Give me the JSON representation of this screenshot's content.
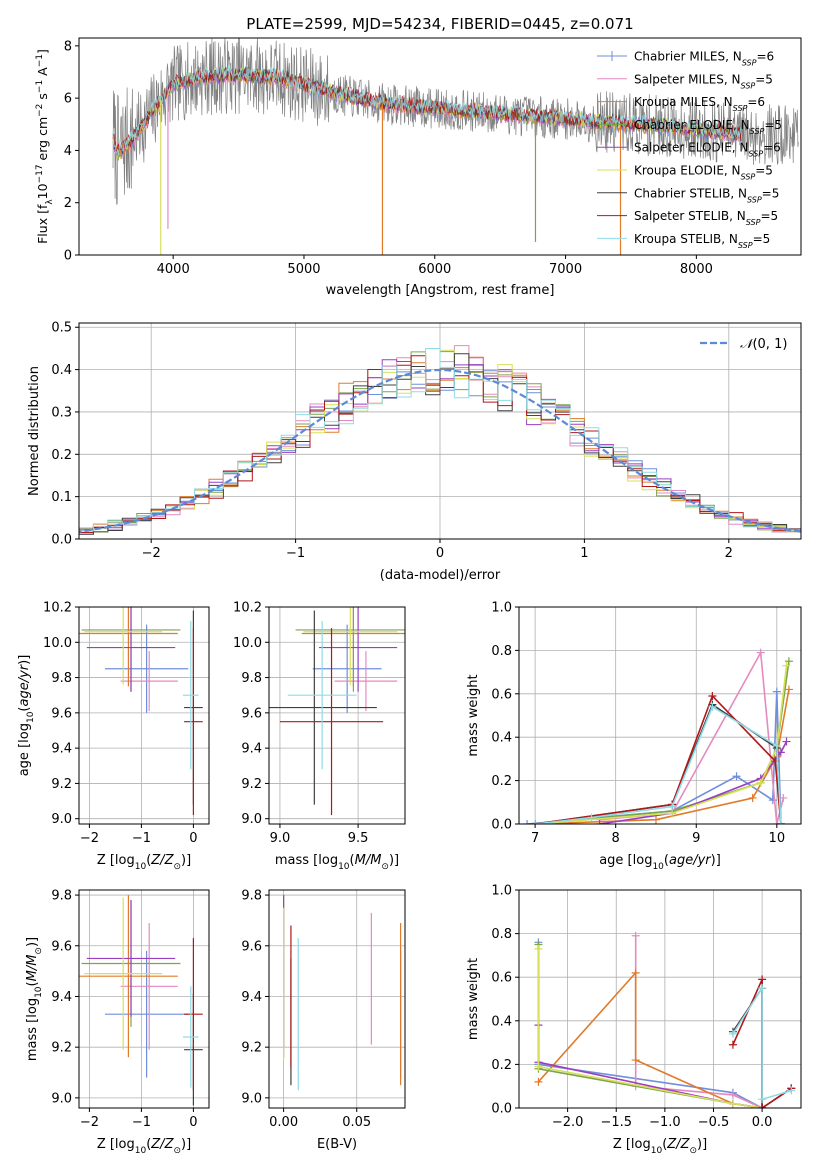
{
  "figure_title": "PLATE=2599, MJD=54234, FIBERID=0445, z=0.071",
  "colors": {
    "chabrier_miles": "#6f8fdc",
    "salpeter_miles": "#e58ac0",
    "kroupa_miles": "#e07b2a",
    "chabrier_elodie": "#7aa64a",
    "salpeter_elodie": "#9a3fc0",
    "kroupa_elodie": "#d8e05a",
    "chabrier_stelib": "#404040",
    "salpeter_stelib": "#b01818",
    "kroupa_stelib": "#8fdbe8",
    "data": "#808080",
    "normal_curve": "#5b8bd8",
    "grid": "#b0b0b0"
  },
  "chart_data": [
    {
      "id": "spectrum",
      "type": "line",
      "xlabel": "wavelength [Angstrom, rest frame]",
      "ylabel": "Flux [f$_\\lambda$10$^{-17}$ erg cm$^{-2}$ s$^{-1}$ A$^{-1}$]",
      "ylabel_parts": [
        "Flux [f",
        "λ",
        "10",
        "−17",
        " erg cm",
        "−2",
        " s",
        "−1",
        " A",
        "−1",
        "]"
      ],
      "xlim": [
        3280,
        8800
      ],
      "ylim": [
        0,
        8.3
      ],
      "xticks": [
        4000,
        5000,
        6000,
        7000,
        8000
      ],
      "yticks": [
        0,
        2,
        4,
        6,
        8
      ],
      "grid": false,
      "legend_position": "top-right",
      "legend": [
        {
          "model": "Chabrier MILES",
          "nssp": "6",
          "color_key": "chabrier_miles"
        },
        {
          "model": "Salpeter MILES",
          "nssp": "5",
          "color_key": "salpeter_miles"
        },
        {
          "model": "Kroupa MILES",
          "nssp": "6",
          "color_key": "kroupa_miles"
        },
        {
          "model": "Chabrier ELODIE",
          "nssp": "5",
          "color_key": "chabrier_elodie"
        },
        {
          "model": "Salpeter ELODIE",
          "nssp": "6",
          "color_key": "salpeter_elodie"
        },
        {
          "model": "Kroupa ELODIE",
          "nssp": "5",
          "color_key": "kroupa_elodie"
        },
        {
          "model": "Chabrier STELIB",
          "nssp": "5",
          "color_key": "chabrier_stelib"
        },
        {
          "model": "Salpeter STELIB",
          "nssp": "5",
          "color_key": "salpeter_stelib"
        },
        {
          "model": "Kroupa STELIB",
          "nssp": "5",
          "color_key": "kroupa_stelib"
        }
      ],
      "nssp_label": "N",
      "nssp_sub": "SSP",
      "continuum_model": [
        [
          3540,
          4.5
        ],
        [
          3570,
          3.9
        ],
        [
          3620,
          4.1
        ],
        [
          3700,
          4.5
        ],
        [
          3800,
          5.2
        ],
        [
          3900,
          5.9
        ],
        [
          4000,
          6.5
        ],
        [
          4200,
          6.8
        ],
        [
          4500,
          6.9
        ],
        [
          4800,
          6.8
        ],
        [
          5000,
          6.5
        ],
        [
          5300,
          6.1
        ],
        [
          5600,
          5.8
        ],
        [
          6000,
          5.6
        ],
        [
          6500,
          5.4
        ],
        [
          7000,
          5.2
        ],
        [
          7500,
          5.0
        ],
        [
          7800,
          4.9
        ],
        [
          8000,
          4.8
        ],
        [
          8200,
          4.7
        ],
        [
          8350,
          4.6
        ]
      ],
      "model_dips": [
        [
          3905,
          0,
          "kroupa_elodie"
        ],
        [
          3960,
          1.0,
          "salpeter_miles"
        ],
        [
          5600,
          0,
          "kroupa_miles"
        ],
        [
          6770,
          0.5,
          "chabrier_elodie"
        ],
        [
          7420,
          0,
          "kroupa_miles"
        ]
      ]
    },
    {
      "id": "residuals",
      "type": "histogram",
      "xlabel": "(data-model)/error",
      "ylabel": "Normed distribution",
      "xlim": [
        -2.5,
        2.5
      ],
      "ylim": [
        0,
        0.51
      ],
      "xticks": [
        -2,
        -1,
        0,
        1,
        2
      ],
      "yticks": [
        0.0,
        0.1,
        0.2,
        0.3,
        0.4,
        0.5
      ],
      "grid": true,
      "legend_position": "top-right",
      "curve_label": "N(0,1)",
      "curve_label_parts": [
        "𝒩",
        "(0, 1)"
      ],
      "curve": "gaussian mean 0 sigma 1",
      "bin_width": 0.1
    },
    {
      "id": "age_vs_Z",
      "type": "errorbar",
      "xlabel": "Z [log10(Z/Z⊙)]",
      "xlabel_parts": [
        "Z [log",
        "10",
        "(",
        "Z/Z",
        "⊙",
        ")]"
      ],
      "ylabel": "age [log10(age/yr)]",
      "ylabel_parts": [
        "age  [log",
        "10",
        "(",
        "age/yr",
        ")]"
      ],
      "xlim": [
        -2.2,
        0.3
      ],
      "ylim": [
        8.97,
        10.2
      ],
      "xticks": [
        -2,
        -1,
        0
      ],
      "yticks": [
        9.0,
        9.2,
        9.4,
        9.6,
        9.8,
        10.0,
        10.2
      ],
      "grid": true,
      "points": [
        {
          "color_key": "chabrier_miles",
          "x": -0.9,
          "xerr": 0.8,
          "y": 9.85,
          "yerr": 0.25
        },
        {
          "color_key": "salpeter_miles",
          "x": -0.85,
          "xerr": 0.55,
          "y": 9.78,
          "yerr": 0.17
        },
        {
          "color_key": "kroupa_miles",
          "x": -1.25,
          "xerr": 0.95,
          "y": 10.05,
          "yerr": 0.3
        },
        {
          "color_key": "chabrier_elodie",
          "x": -1.2,
          "xerr": 0.95,
          "y": 10.07,
          "yerr": 0.35
        },
        {
          "color_key": "salpeter_elodie",
          "x": -1.2,
          "xerr": 0.85,
          "y": 9.97,
          "yerr": 0.25
        },
        {
          "color_key": "kroupa_elodie",
          "x": -1.35,
          "xerr": 0.75,
          "y": 10.06,
          "yerr": 0.3
        },
        {
          "color_key": "chabrier_stelib",
          "x": 0.0,
          "xerr": 0.18,
          "y": 9.63,
          "yerr": 0.55
        },
        {
          "color_key": "salpeter_stelib",
          "x": 0.0,
          "xerr": 0.18,
          "y": 9.55,
          "yerr": 0.53
        },
        {
          "color_key": "kroupa_stelib",
          "x": -0.05,
          "xerr": 0.15,
          "y": 9.7,
          "yerr": 0.42
        }
      ]
    },
    {
      "id": "age_vs_mass",
      "type": "errorbar",
      "xlabel": "mass [log10(M/M⊙)]",
      "xlabel_parts": [
        "mass [log",
        "10",
        "(",
        "M/M",
        "⊙",
        ")]"
      ],
      "ylabel": "",
      "xlim": [
        8.93,
        9.8
      ],
      "ylim": [
        8.97,
        10.2
      ],
      "xticks": [
        9.0,
        9.5
      ],
      "yticks": [
        9.0,
        9.2,
        9.4,
        9.6,
        9.8,
        10.0,
        10.2
      ],
      "grid": true,
      "points": [
        {
          "color_key": "chabrier_miles",
          "x": 9.43,
          "xerr": 0.22,
          "y": 9.85,
          "yerr": 0.25
        },
        {
          "color_key": "salpeter_miles",
          "x": 9.55,
          "xerr": 0.2,
          "y": 9.78,
          "yerr": 0.17
        },
        {
          "color_key": "kroupa_miles",
          "x": 9.47,
          "xerr": 0.33,
          "y": 10.05,
          "yerr": 0.3
        },
        {
          "color_key": "chabrier_elodie",
          "x": 9.47,
          "xerr": 0.37,
          "y": 10.07,
          "yerr": 0.35
        },
        {
          "color_key": "salpeter_elodie",
          "x": 9.5,
          "xerr": 0.25,
          "y": 9.97,
          "yerr": 0.25
        },
        {
          "color_key": "kroupa_elodie",
          "x": 9.45,
          "xerr": 0.3,
          "y": 10.06,
          "yerr": 0.3
        },
        {
          "color_key": "chabrier_stelib",
          "x": 9.22,
          "xerr": 0.4,
          "y": 9.63,
          "yerr": 0.55
        },
        {
          "color_key": "salpeter_stelib",
          "x": 9.33,
          "xerr": 0.33,
          "y": 9.55,
          "yerr": 0.53
        },
        {
          "color_key": "kroupa_stelib",
          "x": 9.27,
          "xerr": 0.22,
          "y": 9.7,
          "yerr": 0.42
        }
      ]
    },
    {
      "id": "mass_weight_vs_age",
      "type": "line",
      "xlabel": "age [log10(age/yr)]",
      "xlabel_parts": [
        "age  [log",
        "10",
        "(",
        "age/yr",
        ")]"
      ],
      "ylabel": "mass weight",
      "xlim": [
        6.8,
        10.3
      ],
      "ylim": [
        0,
        1.0
      ],
      "xticks": [
        7,
        8,
        9,
        10
      ],
      "yticks": [
        0.0,
        0.2,
        0.4,
        0.6,
        0.8,
        1.0
      ],
      "grid": true,
      "series": [
        {
          "color_key": "chabrier_miles",
          "x": [
            6.9,
            8.7,
            9.5,
            9.95,
            10.0,
            10.05
          ],
          "y": [
            0.0,
            0.06,
            0.22,
            0.11,
            0.61,
            0.0
          ]
        },
        {
          "color_key": "salpeter_miles",
          "x": [
            7.8,
            8.7,
            9.8,
            10.0,
            10.08
          ],
          "y": [
            0.02,
            0.05,
            0.79,
            0.0,
            0.12
          ]
        },
        {
          "color_key": "kroupa_miles",
          "x": [
            7.0,
            8.5,
            9.7,
            10.0,
            10.15
          ],
          "y": [
            0.0,
            0.02,
            0.12,
            0.31,
            0.62
          ]
        },
        {
          "color_key": "chabrier_elodie",
          "x": [
            7.0,
            8.7,
            9.8,
            10.0,
            10.15
          ],
          "y": [
            0.0,
            0.06,
            0.19,
            0.35,
            0.75
          ]
        },
        {
          "color_key": "salpeter_elodie",
          "x": [
            7.8,
            8.7,
            9.8,
            10.05,
            10.12
          ],
          "y": [
            0.0,
            0.05,
            0.21,
            0.33,
            0.38
          ]
        },
        {
          "color_key": "kroupa_elodie",
          "x": [
            7.0,
            8.7,
            9.8,
            10.0,
            10.12
          ],
          "y": [
            0.0,
            0.05,
            0.19,
            0.35,
            0.73
          ]
        },
        {
          "color_key": "chabrier_stelib",
          "x": [
            7.0,
            8.7,
            9.2,
            10.0,
            10.05
          ],
          "y": [
            0.0,
            0.09,
            0.55,
            0.35,
            0.0
          ]
        },
        {
          "color_key": "salpeter_stelib",
          "x": [
            7.0,
            8.7,
            9.2,
            9.98,
            10.05
          ],
          "y": [
            0.0,
            0.09,
            0.59,
            0.29,
            0.0
          ]
        },
        {
          "color_key": "kroupa_stelib",
          "x": [
            7.0,
            7.7,
            8.7,
            9.2,
            10.0,
            10.05
          ],
          "y": [
            0.0,
            0.03,
            0.08,
            0.54,
            0.36,
            0.0
          ]
        }
      ]
    },
    {
      "id": "mass_vs_Z",
      "type": "errorbar",
      "xlabel": "Z [log10(Z/Z⊙)]",
      "xlabel_parts": [
        "Z [log",
        "10",
        "(",
        "Z/Z",
        "⊙",
        ")]"
      ],
      "ylabel": "mass [log10(M/M⊙)]",
      "ylabel_parts": [
        "mass [log",
        "10",
        "(",
        "M/M",
        "⊙",
        ")]"
      ],
      "xlim": [
        -2.2,
        0.3
      ],
      "ylim": [
        8.96,
        9.82
      ],
      "xticks": [
        -2,
        -1,
        0
      ],
      "yticks": [
        9.0,
        9.2,
        9.4,
        9.6,
        9.8
      ],
      "grid": true,
      "points": [
        {
          "color_key": "chabrier_miles",
          "x": -0.9,
          "xerr": 0.8,
          "y": 9.33,
          "yerr": 0.25
        },
        {
          "color_key": "salpeter_miles",
          "x": -0.85,
          "xerr": 0.55,
          "y": 9.44,
          "yerr": 0.25
        },
        {
          "color_key": "kroupa_miles",
          "x": -1.25,
          "xerr": 0.95,
          "y": 9.48,
          "yerr": 0.32
        },
        {
          "color_key": "chabrier_elodie",
          "x": -1.2,
          "xerr": 0.95,
          "y": 9.53,
          "yerr": 0.25
        },
        {
          "color_key": "salpeter_elodie",
          "x": -1.2,
          "xerr": 0.85,
          "y": 9.55,
          "yerr": 0.23
        },
        {
          "color_key": "kroupa_elodie",
          "x": -1.35,
          "xerr": 0.75,
          "y": 9.49,
          "yerr": 0.3
        },
        {
          "color_key": "chabrier_stelib",
          "x": 0.0,
          "xerr": 0.18,
          "y": 9.19,
          "yerr": 0.22
        },
        {
          "color_key": "salpeter_stelib",
          "x": 0.0,
          "xerr": 0.18,
          "y": 9.33,
          "yerr": 0.3
        },
        {
          "color_key": "kroupa_stelib",
          "x": -0.05,
          "xerr": 0.15,
          "y": 9.24,
          "yerr": 0.2
        }
      ]
    },
    {
      "id": "mass_vs_ebv",
      "type": "errorbar",
      "xlabel": "E(B-V)",
      "ylabel": "",
      "xlim": [
        -0.01,
        0.083
      ],
      "ylim": [
        8.96,
        9.82
      ],
      "xticks": [
        0.0,
        0.05
      ],
      "yticks": [
        9.0,
        9.2,
        9.4,
        9.6,
        9.8
      ],
      "grid": true,
      "points": [
        {
          "color_key": "chabrier_miles",
          "x": 0.08,
          "yerr": 0.25,
          "y": 9.33
        },
        {
          "color_key": "salpeter_miles",
          "x": 0.06,
          "yerr": 0.26,
          "y": 9.47
        },
        {
          "color_key": "kroupa_miles",
          "x": 0.08,
          "yerr": 0.32,
          "y": 9.37
        },
        {
          "color_key": "chabrier_elodie",
          "x": 0.0,
          "yerr": 0.3,
          "y": 9.5
        },
        {
          "color_key": "salpeter_elodie",
          "x": 0.0,
          "yerr": 0.32,
          "y": 9.48
        },
        {
          "color_key": "kroupa_elodie",
          "x": 0.0,
          "yerr": 0.3,
          "y": 9.45
        },
        {
          "color_key": "chabrier_stelib",
          "x": 0.005,
          "yerr": 0.25,
          "y": 9.3
        },
        {
          "color_key": "salpeter_stelib",
          "x": 0.005,
          "yerr": 0.28,
          "y": 9.4
        },
        {
          "color_key": "kroupa_stelib",
          "x": 0.01,
          "yerr": 0.3,
          "y": 9.33
        }
      ]
    },
    {
      "id": "mass_weight_vs_Z",
      "type": "line",
      "xlabel": "Z [log10(Z/Z⊙)]",
      "xlabel_parts": [
        "Z [log",
        "10",
        "(",
        "Z/Z",
        "⊙",
        ")]"
      ],
      "ylabel": "mass weight",
      "xlim": [
        -2.5,
        0.4
      ],
      "ylim": [
        0,
        1.0
      ],
      "xticks": [
        -2.0,
        -1.5,
        -1.0,
        -0.5,
        0.0
      ],
      "yticks": [
        0.0,
        0.2,
        0.4,
        0.6,
        0.8,
        1.0
      ],
      "grid": true,
      "series": [
        {
          "color_key": "chabrier_miles",
          "x": [
            -2.3,
            -2.3,
            -0.3,
            0.0,
            0.0
          ],
          "y": [
            0.76,
            0.2,
            0.07,
            0.0,
            0.0
          ]
        },
        {
          "color_key": "salpeter_miles",
          "x": [
            -1.3,
            -1.3,
            -0.3,
            0.0
          ],
          "y": [
            0.79,
            0.1,
            0.06,
            0.0
          ]
        },
        {
          "color_key": "kroupa_miles",
          "x": [
            -2.3,
            -1.3,
            -1.3,
            -0.3,
            0.0
          ],
          "y": [
            0.12,
            0.62,
            0.22,
            0.02,
            0.0
          ]
        },
        {
          "color_key": "chabrier_elodie",
          "x": [
            -2.3,
            -2.3,
            -0.3,
            0.0,
            0.0
          ],
          "y": [
            0.75,
            0.18,
            0.02,
            0.0,
            0.55
          ]
        },
        {
          "color_key": "salpeter_elodie",
          "x": [
            -2.3,
            -2.3,
            -0.3,
            0.0
          ],
          "y": [
            0.38,
            0.21,
            0.02,
            0.0
          ]
        },
        {
          "color_key": "kroupa_elodie",
          "x": [
            -2.3,
            -2.3,
            -0.3,
            0.0,
            0.0
          ],
          "y": [
            0.73,
            0.19,
            0.02,
            0.0,
            0.55
          ]
        },
        {
          "color_key": "chabrier_stelib",
          "x": [
            -0.3,
            0.0,
            0.0,
            0.3
          ],
          "y": [
            0.35,
            0.55,
            0.0,
            0.09
          ]
        },
        {
          "color_key": "salpeter_stelib",
          "x": [
            -0.3,
            0.0,
            0.0,
            0.3
          ],
          "y": [
            0.29,
            0.59,
            0.0,
            0.09
          ]
        },
        {
          "color_key": "kroupa_stelib",
          "x": [
            -0.3,
            0.0,
            0.0,
            0.3
          ],
          "y": [
            0.34,
            0.55,
            0.04,
            0.08
          ]
        }
      ]
    }
  ]
}
